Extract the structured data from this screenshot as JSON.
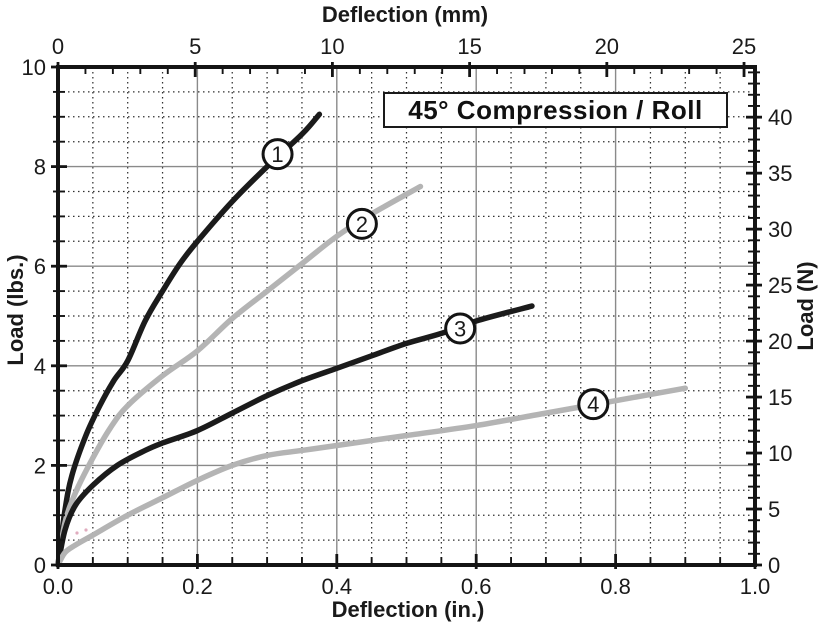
{
  "colors": {
    "black_curve": "#1b1b1b",
    "gray_curve": "#b4b4b4",
    "axis": "#141414",
    "grid_dotted": "#303030",
    "grid_solid": "#8a8a8a",
    "text": "#1a1a1a",
    "label_circle_fill": "#ffffff",
    "artifact_pink": "#d998ae",
    "background": "#ffffff"
  },
  "chart_data": {
    "type": "line",
    "title": "45° Compression / Roll",
    "xlabel_top": "Deflection (mm)",
    "xlabel_bottom": "Deflection (in.)",
    "ylabel_left": "Load (lbs.)",
    "ylabel_right": "Load (N)",
    "grid": {
      "minor": "dotted",
      "major": "solid",
      "minor_x_step_in": 0.05,
      "minor_y_step_lbs": 0.5,
      "major_x_step_in": 0.2,
      "major_y_step_lbs": 2
    },
    "legend_position": "none",
    "axes": {
      "bottom": {
        "min": 0,
        "max": 1.0,
        "major_step": 0.2,
        "minor_step": 0.05,
        "major_tick_labels": [
          "0.0",
          "0.2",
          "0.4",
          "0.6",
          "0.8",
          "1.0"
        ]
      },
      "top": {
        "min": 0,
        "max": 25.4,
        "minor_step": 1,
        "major_ticks": [
          0,
          5,
          10,
          15,
          20,
          25
        ]
      },
      "left": {
        "min": 0,
        "max": 10,
        "minor_step": 0.5,
        "major_ticks": [
          0,
          2,
          4,
          6,
          8,
          10
        ]
      },
      "right": {
        "min": 0,
        "max": 44.48,
        "minor_step": 1,
        "major_ticks": [
          0,
          5,
          10,
          15,
          20,
          25,
          30,
          35,
          40
        ]
      }
    },
    "series": [
      {
        "name": "1",
        "color_key": "black_curve",
        "label": {
          "text": "1",
          "x": 0.315,
          "y": 8.25
        },
        "points": [
          [
            0,
            0
          ],
          [
            0.01,
            1.1
          ],
          [
            0.02,
            1.8
          ],
          [
            0.04,
            2.6
          ],
          [
            0.06,
            3.2
          ],
          [
            0.08,
            3.7
          ],
          [
            0.1,
            4.1
          ],
          [
            0.125,
            4.9
          ],
          [
            0.15,
            5.5
          ],
          [
            0.175,
            6.05
          ],
          [
            0.2,
            6.5
          ],
          [
            0.25,
            7.3
          ],
          [
            0.3,
            8.0
          ],
          [
            0.35,
            8.65
          ],
          [
            0.375,
            9.05
          ]
        ]
      },
      {
        "name": "2",
        "color_key": "gray_curve",
        "label": {
          "text": "2",
          "x": 0.436,
          "y": 6.85
        },
        "points": [
          [
            0,
            0
          ],
          [
            0.01,
            0.85
          ],
          [
            0.025,
            1.45
          ],
          [
            0.05,
            2.15
          ],
          [
            0.075,
            2.75
          ],
          [
            0.1,
            3.2
          ],
          [
            0.15,
            3.8
          ],
          [
            0.2,
            4.3
          ],
          [
            0.25,
            4.95
          ],
          [
            0.3,
            5.5
          ],
          [
            0.35,
            6.05
          ],
          [
            0.4,
            6.6
          ],
          [
            0.45,
            7.05
          ],
          [
            0.52,
            7.6
          ]
        ]
      },
      {
        "name": "3",
        "color_key": "black_curve",
        "label": {
          "text": "3",
          "x": 0.577,
          "y": 4.75
        },
        "points": [
          [
            0,
            0
          ],
          [
            0.01,
            0.7
          ],
          [
            0.025,
            1.2
          ],
          [
            0.05,
            1.6
          ],
          [
            0.085,
            2.0
          ],
          [
            0.125,
            2.3
          ],
          [
            0.15,
            2.45
          ],
          [
            0.2,
            2.7
          ],
          [
            0.25,
            3.05
          ],
          [
            0.3,
            3.4
          ],
          [
            0.35,
            3.7
          ],
          [
            0.4,
            3.95
          ],
          [
            0.45,
            4.2
          ],
          [
            0.5,
            4.45
          ],
          [
            0.55,
            4.65
          ],
          [
            0.6,
            4.9
          ],
          [
            0.68,
            5.2
          ]
        ]
      },
      {
        "name": "4",
        "color_key": "gray_curve",
        "label": {
          "text": "4",
          "x": 0.768,
          "y": 3.23
        },
        "points": [
          [
            0,
            0
          ],
          [
            0.01,
            0.25
          ],
          [
            0.025,
            0.4
          ],
          [
            0.05,
            0.6
          ],
          [
            0.1,
            1.0
          ],
          [
            0.15,
            1.35
          ],
          [
            0.2,
            1.7
          ],
          [
            0.25,
            2.0
          ],
          [
            0.3,
            2.2
          ],
          [
            0.35,
            2.3
          ],
          [
            0.4,
            2.4
          ],
          [
            0.5,
            2.6
          ],
          [
            0.6,
            2.8
          ],
          [
            0.7,
            3.05
          ],
          [
            0.8,
            3.3
          ],
          [
            0.9,
            3.55
          ]
        ]
      }
    ]
  }
}
